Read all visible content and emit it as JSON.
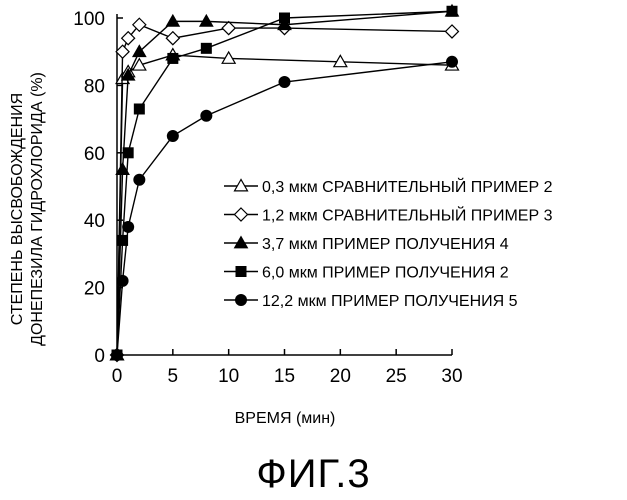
{
  "figure": {
    "caption": "ФИГ.3"
  },
  "chart_data": {
    "type": "line",
    "xlabel": "ВРЕМЯ (мин)",
    "ylabel_lines": [
      "СТЕПЕНЬ ВЫСВОБОЖДЕНИЯ",
      "ДОНЕПЕЗИЛА ГИДРОХЛОРИДА (%)"
    ],
    "xlim": [
      0,
      30
    ],
    "ylim": [
      0,
      100
    ],
    "xticks": [
      0,
      5,
      10,
      15,
      20,
      25,
      30
    ],
    "yticks": [
      0,
      20,
      40,
      60,
      80,
      100
    ],
    "grid": false,
    "legend_position": "center-right",
    "series": [
      {
        "name": "0,3 мкм СРАВНИТЕЛЬНЫЙ ПРИМЕР 2",
        "marker": "triangle-open",
        "x": [
          0,
          0.5,
          1,
          2,
          5,
          10,
          20,
          30
        ],
        "y": [
          0,
          82,
          84,
          86,
          89,
          88,
          87,
          86
        ]
      },
      {
        "name": "1,2 мкм СРАВНИТЕЛЬНЫЙ ПРИМЕР 3",
        "marker": "diamond-open",
        "x": [
          0,
          0.5,
          1,
          2,
          5,
          10,
          15,
          30
        ],
        "y": [
          0,
          90,
          94,
          98,
          94,
          97,
          97,
          96
        ]
      },
      {
        "name": "3,7 мкм ПРИМЕР ПОЛУЧЕНИЯ 4",
        "marker": "triangle-filled",
        "x": [
          0,
          0.5,
          1,
          2,
          5,
          8,
          15,
          30
        ],
        "y": [
          0,
          55,
          83,
          90,
          99,
          99,
          98,
          102
        ]
      },
      {
        "name": "6,0 мкм ПРИМЕР ПОЛУЧЕНИЯ 2",
        "marker": "square-filled",
        "x": [
          0,
          0.5,
          1,
          2,
          5,
          8,
          15,
          30
        ],
        "y": [
          0,
          34,
          60,
          73,
          88,
          91,
          100,
          102
        ]
      },
      {
        "name": "12,2 мкм ПРИМЕР ПОЛУЧЕНИЯ 5",
        "marker": "circle-filled",
        "x": [
          0,
          0.5,
          1,
          2,
          5,
          8,
          15,
          30
        ],
        "y": [
          0,
          22,
          38,
          52,
          65,
          71,
          81,
          87
        ]
      }
    ]
  }
}
